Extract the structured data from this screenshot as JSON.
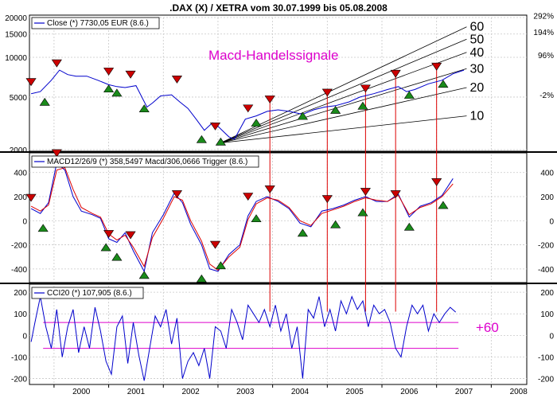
{
  "chart_data": [
    {
      "type": "line",
      "title": ".DAX (X) / XETRA vom 30.07.1999 bis 05.08.2008",
      "annotation": "Macd-Handelssignale",
      "legend": "Close (*) 7730,05 EUR (8.6.)",
      "y_axis_left": [
        2000,
        5000,
        10000,
        15000,
        20000
      ],
      "y_axis_left_labels": [
        "2000",
        "5000",
        "10000",
        "15000",
        "20000"
      ],
      "y_axis_right_labels": [
        "292%",
        "194%",
        "96%",
        "-2%"
      ],
      "ylim": [
        2000,
        20000
      ],
      "fan_labels": [
        "60",
        "50",
        "40",
        "30",
        "20",
        "10"
      ],
      "series": [
        {
          "name": "Close",
          "color": "#0000cc",
          "x": [
            1999.58,
            1999.75,
            1999.95,
            2000.1,
            2000.25,
            2000.4,
            2000.6,
            2000.8,
            2001.0,
            2001.15,
            2001.3,
            2001.5,
            2001.7,
            2001.8,
            2001.95,
            2002.15,
            2002.3,
            2002.45,
            2002.6,
            2002.75,
            2002.9,
            2003.0,
            2003.2,
            2003.3,
            2003.5,
            2003.7,
            2003.9,
            2004.1,
            2004.3,
            2004.55,
            2004.75,
            2004.95,
            2005.15,
            2005.4,
            2005.6,
            2005.85,
            2006.1,
            2006.3,
            2006.45,
            2006.6,
            2006.85,
            2007.1,
            2007.3,
            2007.5
          ],
          "values": [
            5300,
            5500,
            6700,
            8000,
            7400,
            7200,
            7200,
            6700,
            6200,
            6000,
            5900,
            6100,
            4200,
            4500,
            5100,
            5200,
            4600,
            4100,
            3400,
            2800,
            3200,
            3000,
            2500,
            2400,
            3400,
            3600,
            3900,
            4000,
            3900,
            3700,
            4000,
            4200,
            4300,
            4600,
            5000,
            5300,
            5700,
            6000,
            5500,
            5700,
            6300,
            6700,
            7500,
            8000
          ]
        }
      ],
      "buy_signals": [
        {
          "x": 1999.83,
          "y": 4600
        },
        {
          "x": 2001.0,
          "y": 5800
        },
        {
          "x": 2001.15,
          "y": 5400
        },
        {
          "x": 2001.65,
          "y": 4100
        },
        {
          "x": 2002.7,
          "y": 2400
        },
        {
          "x": 2003.05,
          "y": 2300
        },
        {
          "x": 2003.7,
          "y": 3200
        },
        {
          "x": 2004.55,
          "y": 3600
        },
        {
          "x": 2005.15,
          "y": 4000
        },
        {
          "x": 2005.65,
          "y": 4300
        },
        {
          "x": 2006.5,
          "y": 5200
        },
        {
          "x": 2007.12,
          "y": 6300
        }
      ],
      "sell_signals": [
        {
          "x": 1999.58,
          "y": 6500
        },
        {
          "x": 2000.05,
          "y": 9000
        },
        {
          "x": 2001.0,
          "y": 7800
        },
        {
          "x": 2001.4,
          "y": 7400
        },
        {
          "x": 2002.25,
          "y": 6800
        },
        {
          "x": 2002.95,
          "y": 3000
        },
        {
          "x": 2003.55,
          "y": 4100
        },
        {
          "x": 2003.95,
          "y": 4800
        },
        {
          "x": 2005.0,
          "y": 5400
        },
        {
          "x": 2005.7,
          "y": 5800
        },
        {
          "x": 2006.25,
          "y": 7500
        },
        {
          "x": 2007.0,
          "y": 8500
        }
      ],
      "fan_lines": [
        {
          "label": "60",
          "x_end": 2007.55,
          "y_end": 17000
        },
        {
          "label": "50",
          "x_end": 2007.55,
          "y_end": 13700
        },
        {
          "label": "40",
          "x_end": 2007.55,
          "y_end": 10900
        },
        {
          "label": "30",
          "x_end": 2007.55,
          "y_end": 8200
        },
        {
          "label": "20",
          "x_end": 2007.55,
          "y_end": 5900
        },
        {
          "label": "10",
          "x_end": 2007.55,
          "y_end": 3600
        }
      ],
      "fan_origin": {
        "x": 2003.05,
        "y": 2250
      }
    },
    {
      "type": "line",
      "legend": "MACD12/26/9 (*) 358,5497 Macd/306,0666 Trigger (8.6.)",
      "ylim": [
        -500,
        550
      ],
      "y_ticks": [
        -400,
        -200,
        0,
        200,
        400
      ],
      "series": [
        {
          "name": "Macd",
          "color": "#0000cc",
          "x": [
            1999.58,
            1999.75,
            1999.9,
            2000.05,
            2000.2,
            2000.35,
            2000.5,
            2000.7,
            2000.85,
            2001.0,
            2001.15,
            2001.3,
            2001.45,
            2001.65,
            2001.8,
            2002.0,
            2002.2,
            2002.35,
            2002.5,
            2002.7,
            2002.85,
            2003.0,
            2003.2,
            2003.4,
            2003.55,
            2003.7,
            2003.9,
            2004.1,
            2004.3,
            2004.5,
            2004.7,
            2004.9,
            2005.1,
            2005.3,
            2005.5,
            2005.7,
            2005.9,
            2006.1,
            2006.3,
            2006.5,
            2006.7,
            2006.9,
            2007.1,
            2007.3
          ],
          "values": [
            100,
            60,
            150,
            480,
            420,
            200,
            80,
            50,
            20,
            -150,
            -180,
            -100,
            -250,
            -420,
            -100,
            50,
            230,
            150,
            -30,
            -200,
            -400,
            -420,
            -280,
            -200,
            40,
            160,
            200,
            160,
            100,
            -20,
            -50,
            80,
            100,
            130,
            170,
            200,
            160,
            160,
            220,
            30,
            120,
            150,
            210,
            350
          ]
        },
        {
          "name": "Trigger",
          "color": "#dd0000",
          "x": [
            1999.58,
            1999.75,
            1999.9,
            2000.05,
            2000.2,
            2000.35,
            2000.5,
            2000.7,
            2000.85,
            2001.0,
            2001.15,
            2001.3,
            2001.45,
            2001.65,
            2001.8,
            2002.0,
            2002.2,
            2002.35,
            2002.5,
            2002.7,
            2002.85,
            2003.0,
            2003.2,
            2003.4,
            2003.55,
            2003.7,
            2003.9,
            2004.1,
            2004.3,
            2004.5,
            2004.7,
            2004.9,
            2005.1,
            2005.3,
            2005.5,
            2005.7,
            2005.9,
            2006.1,
            2006.3,
            2006.5,
            2006.7,
            2006.9,
            2007.1,
            2007.3
          ],
          "values": [
            120,
            80,
            130,
            420,
            440,
            260,
            110,
            60,
            30,
            -110,
            -160,
            -120,
            -220,
            -380,
            -140,
            20,
            200,
            170,
            0,
            -170,
            -360,
            -410,
            -300,
            -220,
            10,
            140,
            190,
            170,
            110,
            0,
            -40,
            60,
            90,
            120,
            160,
            190,
            170,
            160,
            210,
            50,
            110,
            140,
            200,
            306
          ]
        }
      ],
      "buy_signals": [
        {
          "x": 1999.8,
          "y": -60
        },
        {
          "x": 2000.95,
          "y": -220
        },
        {
          "x": 2001.15,
          "y": -300
        },
        {
          "x": 2001.65,
          "y": -450
        },
        {
          "x": 2002.7,
          "y": -480
        },
        {
          "x": 2003.05,
          "y": -370
        },
        {
          "x": 2003.7,
          "y": 20
        },
        {
          "x": 2004.55,
          "y": -100
        },
        {
          "x": 2005.15,
          "y": -30
        },
        {
          "x": 2005.65,
          "y": 70
        },
        {
          "x": 2006.5,
          "y": -50
        },
        {
          "x": 2007.12,
          "y": 130
        }
      ],
      "sell_signals": [
        {
          "x": 1999.58,
          "y": 190
        },
        {
          "x": 2000.05,
          "y": 560
        },
        {
          "x": 2001.0,
          "y": -110
        },
        {
          "x": 2001.4,
          "y": -120
        },
        {
          "x": 2002.25,
          "y": 220
        },
        {
          "x": 2002.95,
          "y": -200
        },
        {
          "x": 2003.55,
          "y": 200
        },
        {
          "x": 2003.95,
          "y": 260
        },
        {
          "x": 2005.0,
          "y": 180
        },
        {
          "x": 2005.7,
          "y": 240
        },
        {
          "x": 2006.25,
          "y": 220
        },
        {
          "x": 2007.0,
          "y": 320
        }
      ]
    },
    {
      "type": "line",
      "legend": "CCI20 (*) 107,905 (8.6.)",
      "ylim": [
        -220,
        230
      ],
      "y_ticks": [
        -200,
        -100,
        0,
        100,
        200
      ],
      "reference_levels": [
        60,
        -60
      ],
      "reference_label": "+60",
      "x_ticks": [
        2000,
        2001,
        2002,
        2003,
        2004,
        2005,
        2006,
        2007,
        2008
      ],
      "x_tick_labels": [
        "2000",
        "2001",
        "2002",
        "2003",
        "2004",
        "2005",
        "2006",
        "2007",
        "2008"
      ],
      "series": [
        {
          "name": "CCI20",
          "color": "#0000cc",
          "x": [
            1999.58,
            1999.65,
            1999.75,
            1999.85,
            1999.95,
            2000.05,
            2000.15,
            2000.25,
            2000.35,
            2000.45,
            2000.55,
            2000.65,
            2000.75,
            2000.85,
            2000.95,
            2001.05,
            2001.15,
            2001.25,
            2001.35,
            2001.45,
            2001.55,
            2001.65,
            2001.75,
            2001.85,
            2001.95,
            2002.05,
            2002.15,
            2002.25,
            2002.35,
            2002.45,
            2002.55,
            2002.65,
            2002.75,
            2002.85,
            2002.95,
            2003.05,
            2003.15,
            2003.25,
            2003.35,
            2003.45,
            2003.55,
            2003.65,
            2003.75,
            2003.85,
            2003.95,
            2004.05,
            2004.15,
            2004.25,
            2004.35,
            2004.45,
            2004.55,
            2004.65,
            2004.75,
            2004.85,
            2004.95,
            2005.05,
            2005.15,
            2005.25,
            2005.35,
            2005.45,
            2005.55,
            2005.65,
            2005.75,
            2005.85,
            2005.95,
            2006.05,
            2006.15,
            2006.25,
            2006.35,
            2006.45,
            2006.55,
            2006.65,
            2006.75,
            2006.85,
            2006.95,
            2007.05,
            2007.15,
            2007.25,
            2007.35
          ],
          "values": [
            -30,
            60,
            180,
            40,
            -60,
            120,
            -100,
            40,
            120,
            -80,
            40,
            -60,
            130,
            20,
            -120,
            -180,
            40,
            90,
            -130,
            60,
            -90,
            -210,
            -60,
            90,
            40,
            120,
            -40,
            80,
            -200,
            -120,
            -80,
            -140,
            -60,
            -200,
            40,
            20,
            -60,
            120,
            60,
            -20,
            140,
            100,
            60,
            120,
            40,
            140,
            20,
            100,
            -60,
            40,
            -200,
            120,
            80,
            180,
            40,
            120,
            20,
            160,
            100,
            180,
            120,
            160,
            40,
            140,
            100,
            120,
            60,
            -60,
            -100,
            40,
            140,
            100,
            140,
            20,
            100,
            60,
            100,
            130,
            108
          ]
        }
      ]
    }
  ]
}
